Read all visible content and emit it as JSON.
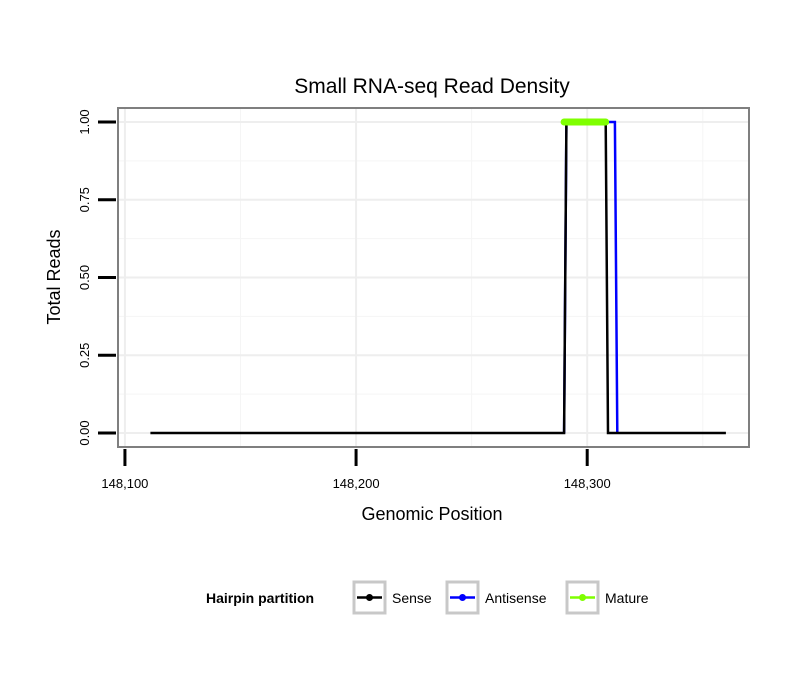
{
  "chart_data": {
    "type": "line",
    "title": "Small RNA-seq Read Density",
    "xlabel": "Genomic Position",
    "ylabel": "Total Reads",
    "xlim": [
      148097,
      148370
    ],
    "ylim": [
      -0.045,
      1.045
    ],
    "x_ticks": [
      148100,
      148200,
      148300
    ],
    "x_tick_labels": [
      "148,100",
      "148,200",
      "148,300"
    ],
    "y_ticks": [
      0,
      0.25,
      0.5,
      0.75,
      1
    ],
    "y_tick_labels": [
      "0.00",
      "0.25",
      "0.50",
      "0.75",
      "1.00"
    ],
    "grid": true,
    "legend": {
      "title": "Hairpin partition",
      "position": "bottom"
    },
    "series": [
      {
        "name": "Sense",
        "color": "#000000",
        "style": "line",
        "x": [
          148111,
          148290,
          148291,
          148308,
          148309,
          148360
        ],
        "y": [
          0,
          0,
          1,
          1,
          0,
          0
        ]
      },
      {
        "name": "Antisense",
        "color": "#0000ff",
        "style": "line",
        "x": [
          148290,
          148291,
          148312,
          148313
        ],
        "y": [
          0,
          1,
          1,
          0
        ]
      },
      {
        "name": "Mature",
        "color": "#7fff00",
        "style": "thick",
        "x": [
          148290,
          148308
        ],
        "y": [
          1,
          1
        ]
      }
    ]
  }
}
